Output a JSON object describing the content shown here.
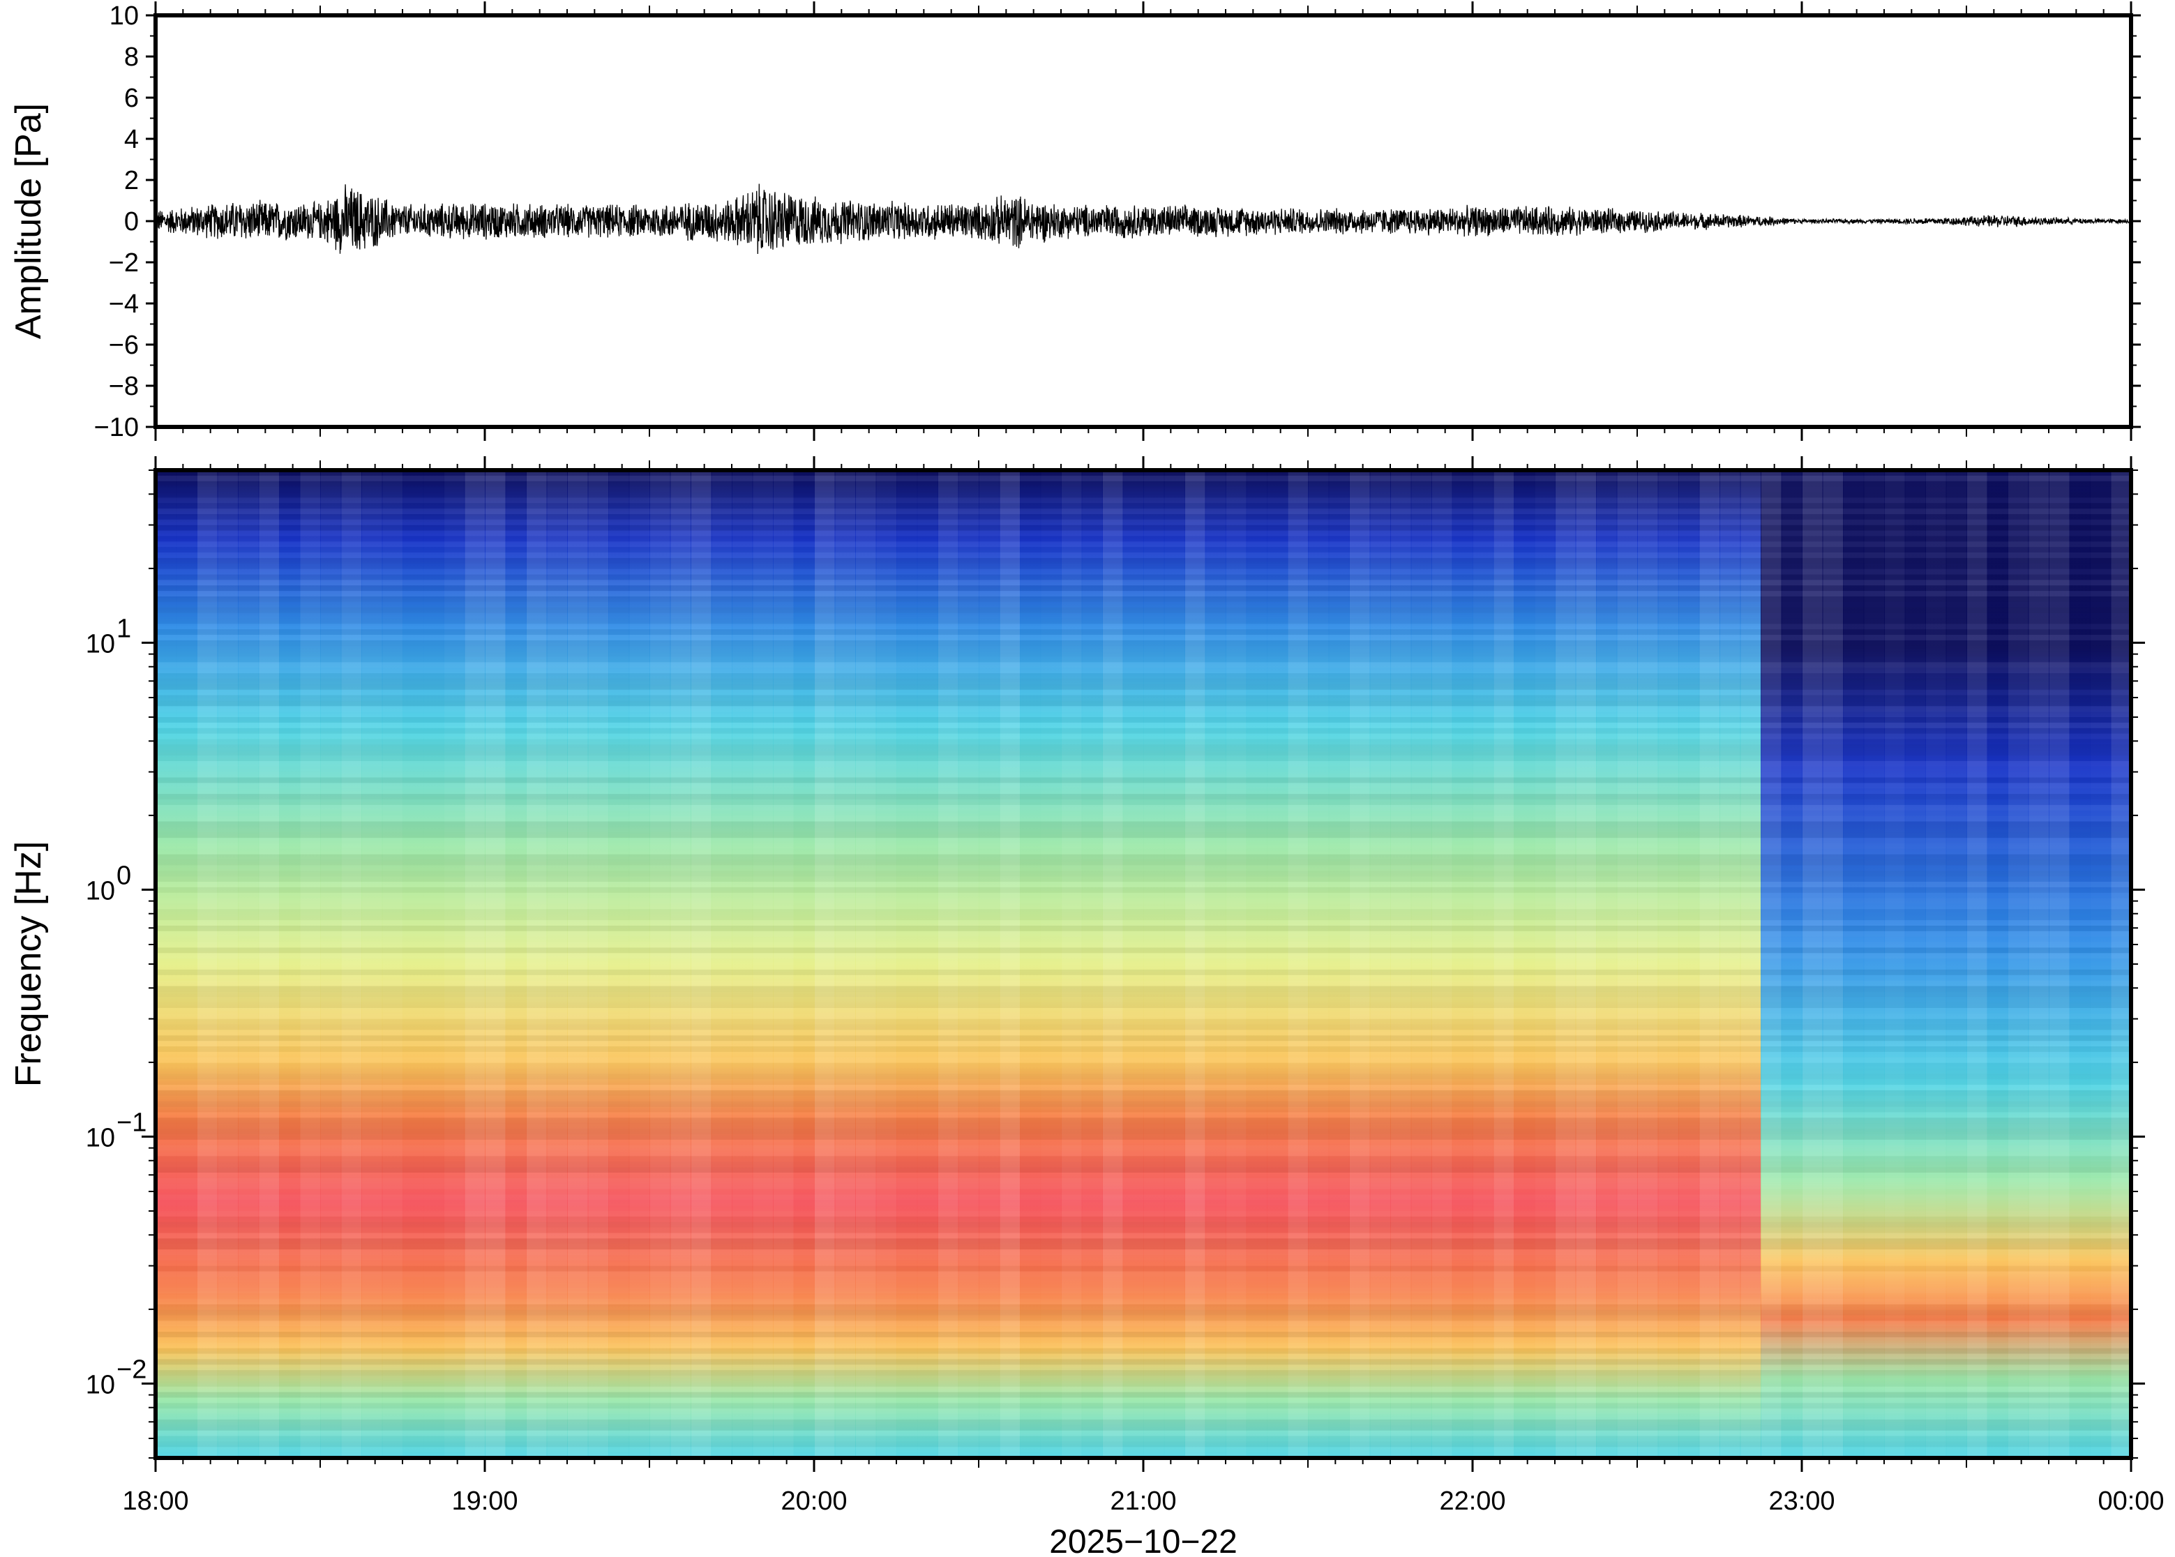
{
  "chart_data": [
    {
      "type": "line",
      "ylabel": "Amplitude [Pa]",
      "ylim": [
        -10,
        10
      ],
      "yticks": [
        "10",
        "8",
        "6",
        "4",
        "2",
        "0",
        "−2",
        "−4",
        "−6",
        "−8",
        "−10"
      ],
      "ytick_values": [
        10,
        8,
        6,
        4,
        2,
        0,
        -2,
        -4,
        -6,
        -8,
        -10
      ],
      "xlim_hours": [
        18,
        24
      ],
      "series": [
        {
          "envelope_hours": [
            18.0,
            18.25,
            18.5,
            18.58,
            18.75,
            19.0,
            19.25,
            19.5,
            19.75,
            19.83,
            20.0,
            20.25,
            20.5,
            20.6,
            20.75,
            21.0,
            21.25,
            21.5,
            21.75,
            22.0,
            22.25,
            22.5,
            22.75,
            22.9,
            23.0,
            23.25,
            23.5,
            23.6,
            23.75,
            24.0
          ],
          "envelope_amplitude": [
            0.6,
            1.1,
            1.0,
            2.0,
            0.9,
            1.0,
            0.9,
            0.9,
            1.2,
            2.0,
            1.3,
            1.0,
            1.0,
            1.5,
            0.9,
            0.9,
            0.8,
            0.7,
            0.7,
            0.8,
            0.8,
            0.6,
            0.4,
            0.25,
            0.12,
            0.12,
            0.25,
            0.35,
            0.2,
            0.1
          ]
        }
      ],
      "color": "#000000"
    },
    {
      "type": "heatmap",
      "ylabel": "Frequency [Hz]",
      "yscale": "log",
      "ylim": [
        0.005,
        50
      ],
      "yticks": [
        {
          "value": 10,
          "base": "10",
          "exp": "1"
        },
        {
          "value": 1,
          "base": "10",
          "exp": "0"
        },
        {
          "value": 0.1,
          "base": "10",
          "exp": "−1"
        },
        {
          "value": 0.01,
          "base": "10",
          "exp": "−2"
        }
      ],
      "xlabel": "2025−10−22",
      "x_ticks": [
        "18:00",
        "19:00",
        "20:00",
        "21:00",
        "22:00",
        "23:00",
        "00:00"
      ],
      "x_tick_hours": [
        18,
        19,
        20,
        21,
        22,
        23,
        24
      ],
      "colormap": [
        "#0a0c5e",
        "#1632c8",
        "#2e8de8",
        "#4fd4e6",
        "#9ae8a8",
        "#e6f08a",
        "#fbc45a",
        "#f77a46",
        "#f5505a"
      ]
    }
  ]
}
